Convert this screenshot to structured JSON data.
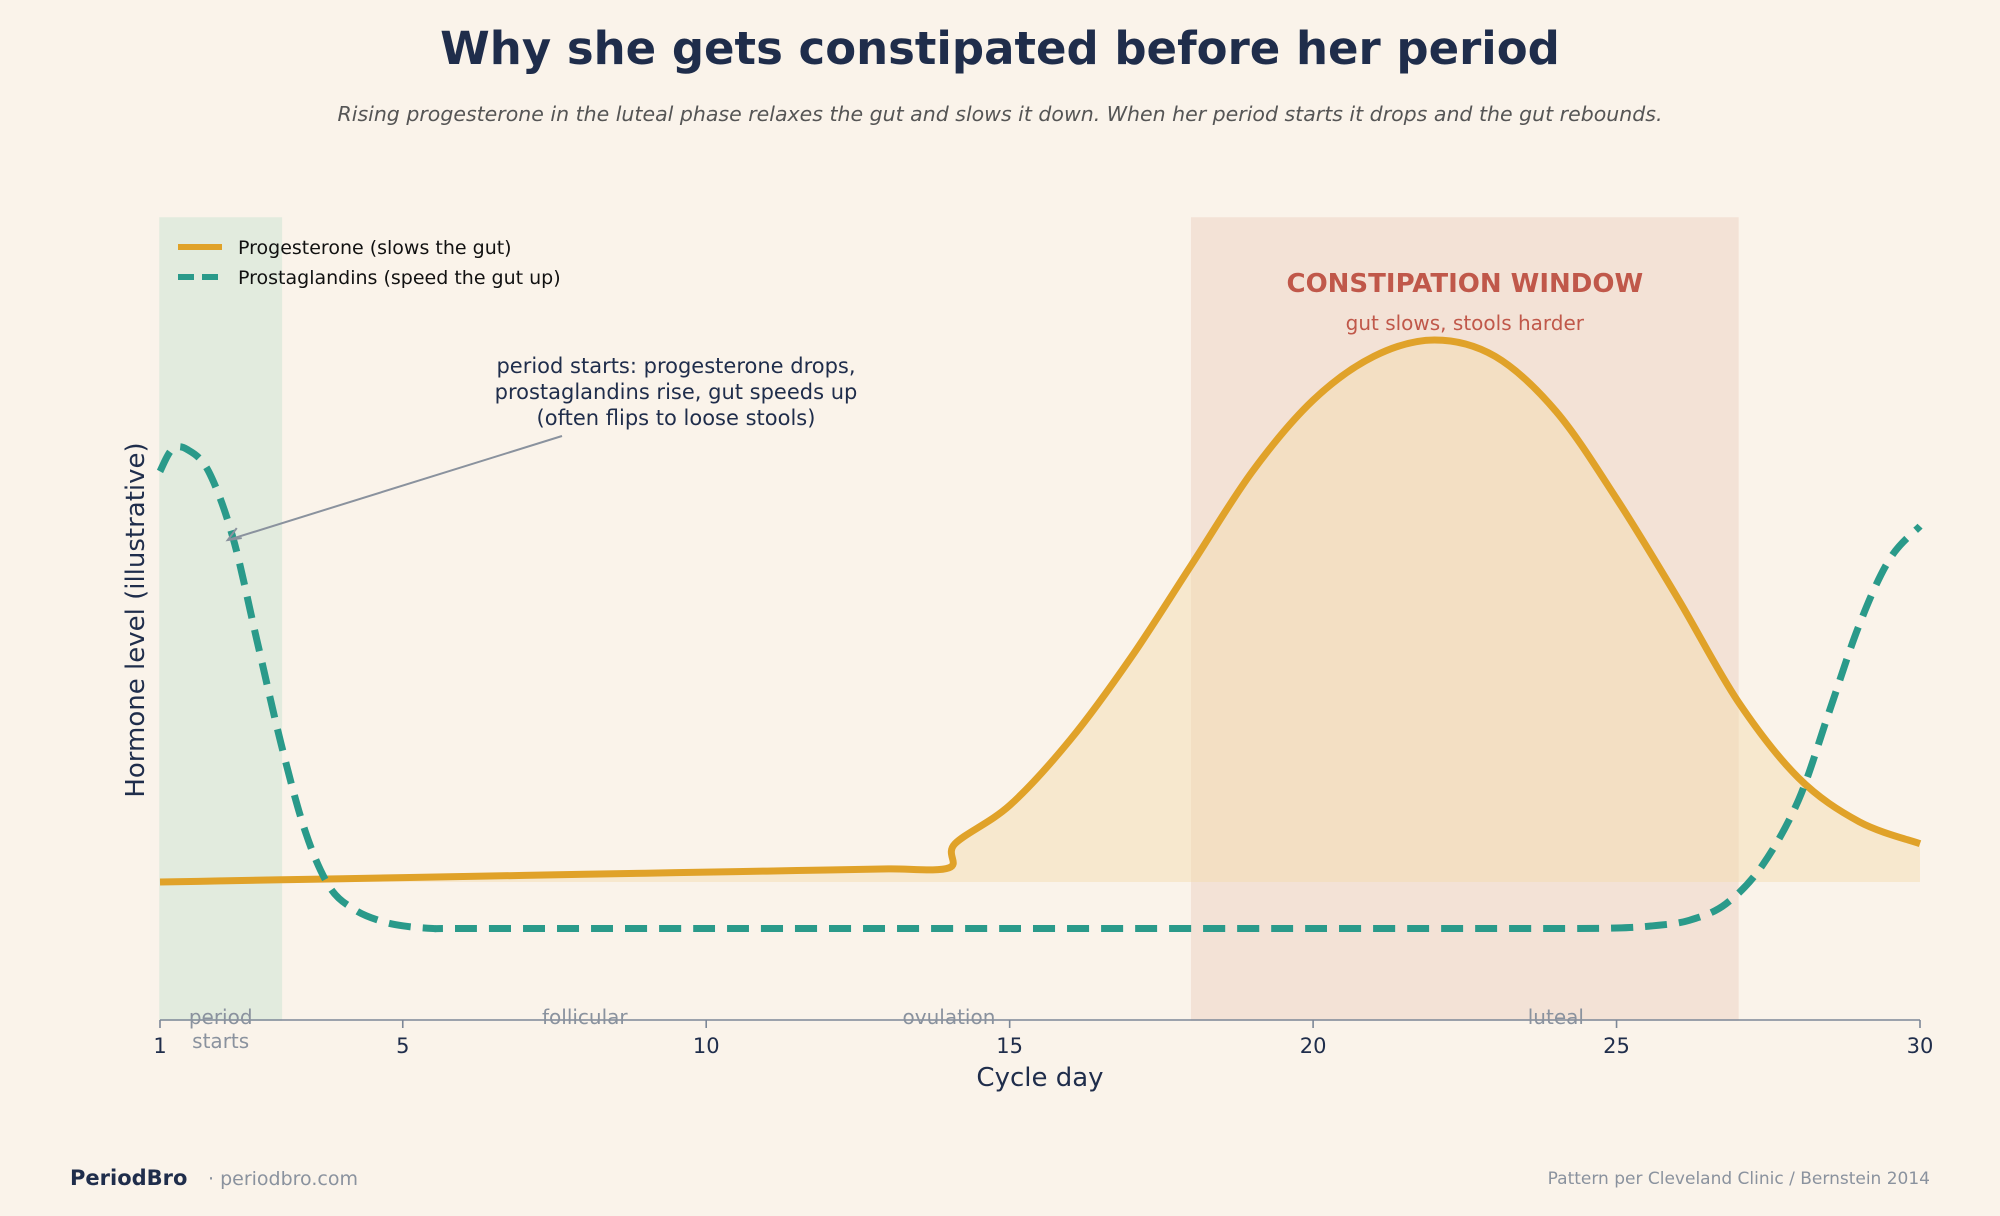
{
  "chart_data": {
    "type": "line",
    "title": "Why she gets constipated before her period",
    "subtitle": "Rising progesterone in the luteal phase relaxes the gut and slows it down. When her period starts it drops and the gut rebounds.",
    "xlabel": "Cycle day",
    "ylabel": "Hormone level (illustrative)",
    "xlim": [
      1,
      30
    ],
    "ylim": [
      0,
      1.2
    ],
    "xticks": [
      1,
      5,
      10,
      15,
      20,
      25,
      30
    ],
    "grid": false,
    "legend_position": "top-left",
    "series": [
      {
        "name": "Progesterone (slows the gut)",
        "color": "#e0a229",
        "style": "solid",
        "x": [
          1,
          2,
          3,
          4,
          5,
          6,
          7,
          8,
          9,
          10,
          11,
          12,
          13,
          14,
          14.1,
          15,
          16,
          17,
          18,
          19,
          20,
          21,
          22,
          23,
          24,
          25,
          26,
          27,
          28,
          29,
          30
        ],
        "y": [
          0.21,
          0.212,
          0.214,
          0.216,
          0.218,
          0.22,
          0.222,
          0.224,
          0.226,
          0.228,
          0.23,
          0.232,
          0.234,
          0.236,
          0.28,
          0.35,
          0.47,
          0.62,
          0.79,
          0.96,
          1.09,
          1.17,
          1.2,
          1.17,
          1.07,
          0.91,
          0.73,
          0.54,
          0.4,
          0.32,
          0.28
        ]
      },
      {
        "name": "Prostaglandins (speed the gut up)",
        "color": "#2a9a8a",
        "style": "dashed",
        "x": [
          1,
          1.2,
          1.45,
          1.8,
          2.2,
          2.6,
          3,
          3.4,
          3.8,
          4.2,
          4.6,
          5,
          5.5,
          6,
          10,
          15,
          20,
          24,
          25,
          25.6,
          26.2,
          26.8,
          27.4,
          28,
          28.5,
          29,
          29.5,
          30
        ],
        "y": [
          0.96,
          1.0,
          1.0,
          0.96,
          0.84,
          0.65,
          0.46,
          0.3,
          0.2,
          0.16,
          0.14,
          0.13,
          0.125,
          0.125,
          0.125,
          0.125,
          0.125,
          0.125,
          0.126,
          0.13,
          0.14,
          0.17,
          0.24,
          0.36,
          0.52,
          0.68,
          0.8,
          0.86
        ]
      }
    ],
    "bands": [
      {
        "x0": 1,
        "x1": 3,
        "color": "#e2ebde"
      },
      {
        "x0": 18,
        "x1": 27,
        "color": "#f3e2d6"
      }
    ],
    "window_label": "CONSTIPATION WINDOW",
    "window_sublabel": "gut slows, stools harder",
    "window_label_color": "#c0584a",
    "annotation": {
      "lines": [
        "period starts: progesterone drops,",
        "prostaglandins rise, gut speeds up",
        "(often flips to loose stools)"
      ],
      "point_x": 2.1,
      "point_y": 0.63
    },
    "phase_labels": [
      {
        "lines": [
          "period",
          "starts"
        ],
        "x": 2
      },
      {
        "lines": [
          "follicular"
        ],
        "x": 8
      },
      {
        "lines": [
          "ovulation"
        ],
        "x": 14
      },
      {
        "lines": [
          "luteal"
        ],
        "x": 24
      }
    ]
  },
  "footer": {
    "brand": "PeriodBro",
    "site": "· periodbro.com",
    "source": "Pattern per Cleveland Clinic / Bernstein 2014"
  }
}
